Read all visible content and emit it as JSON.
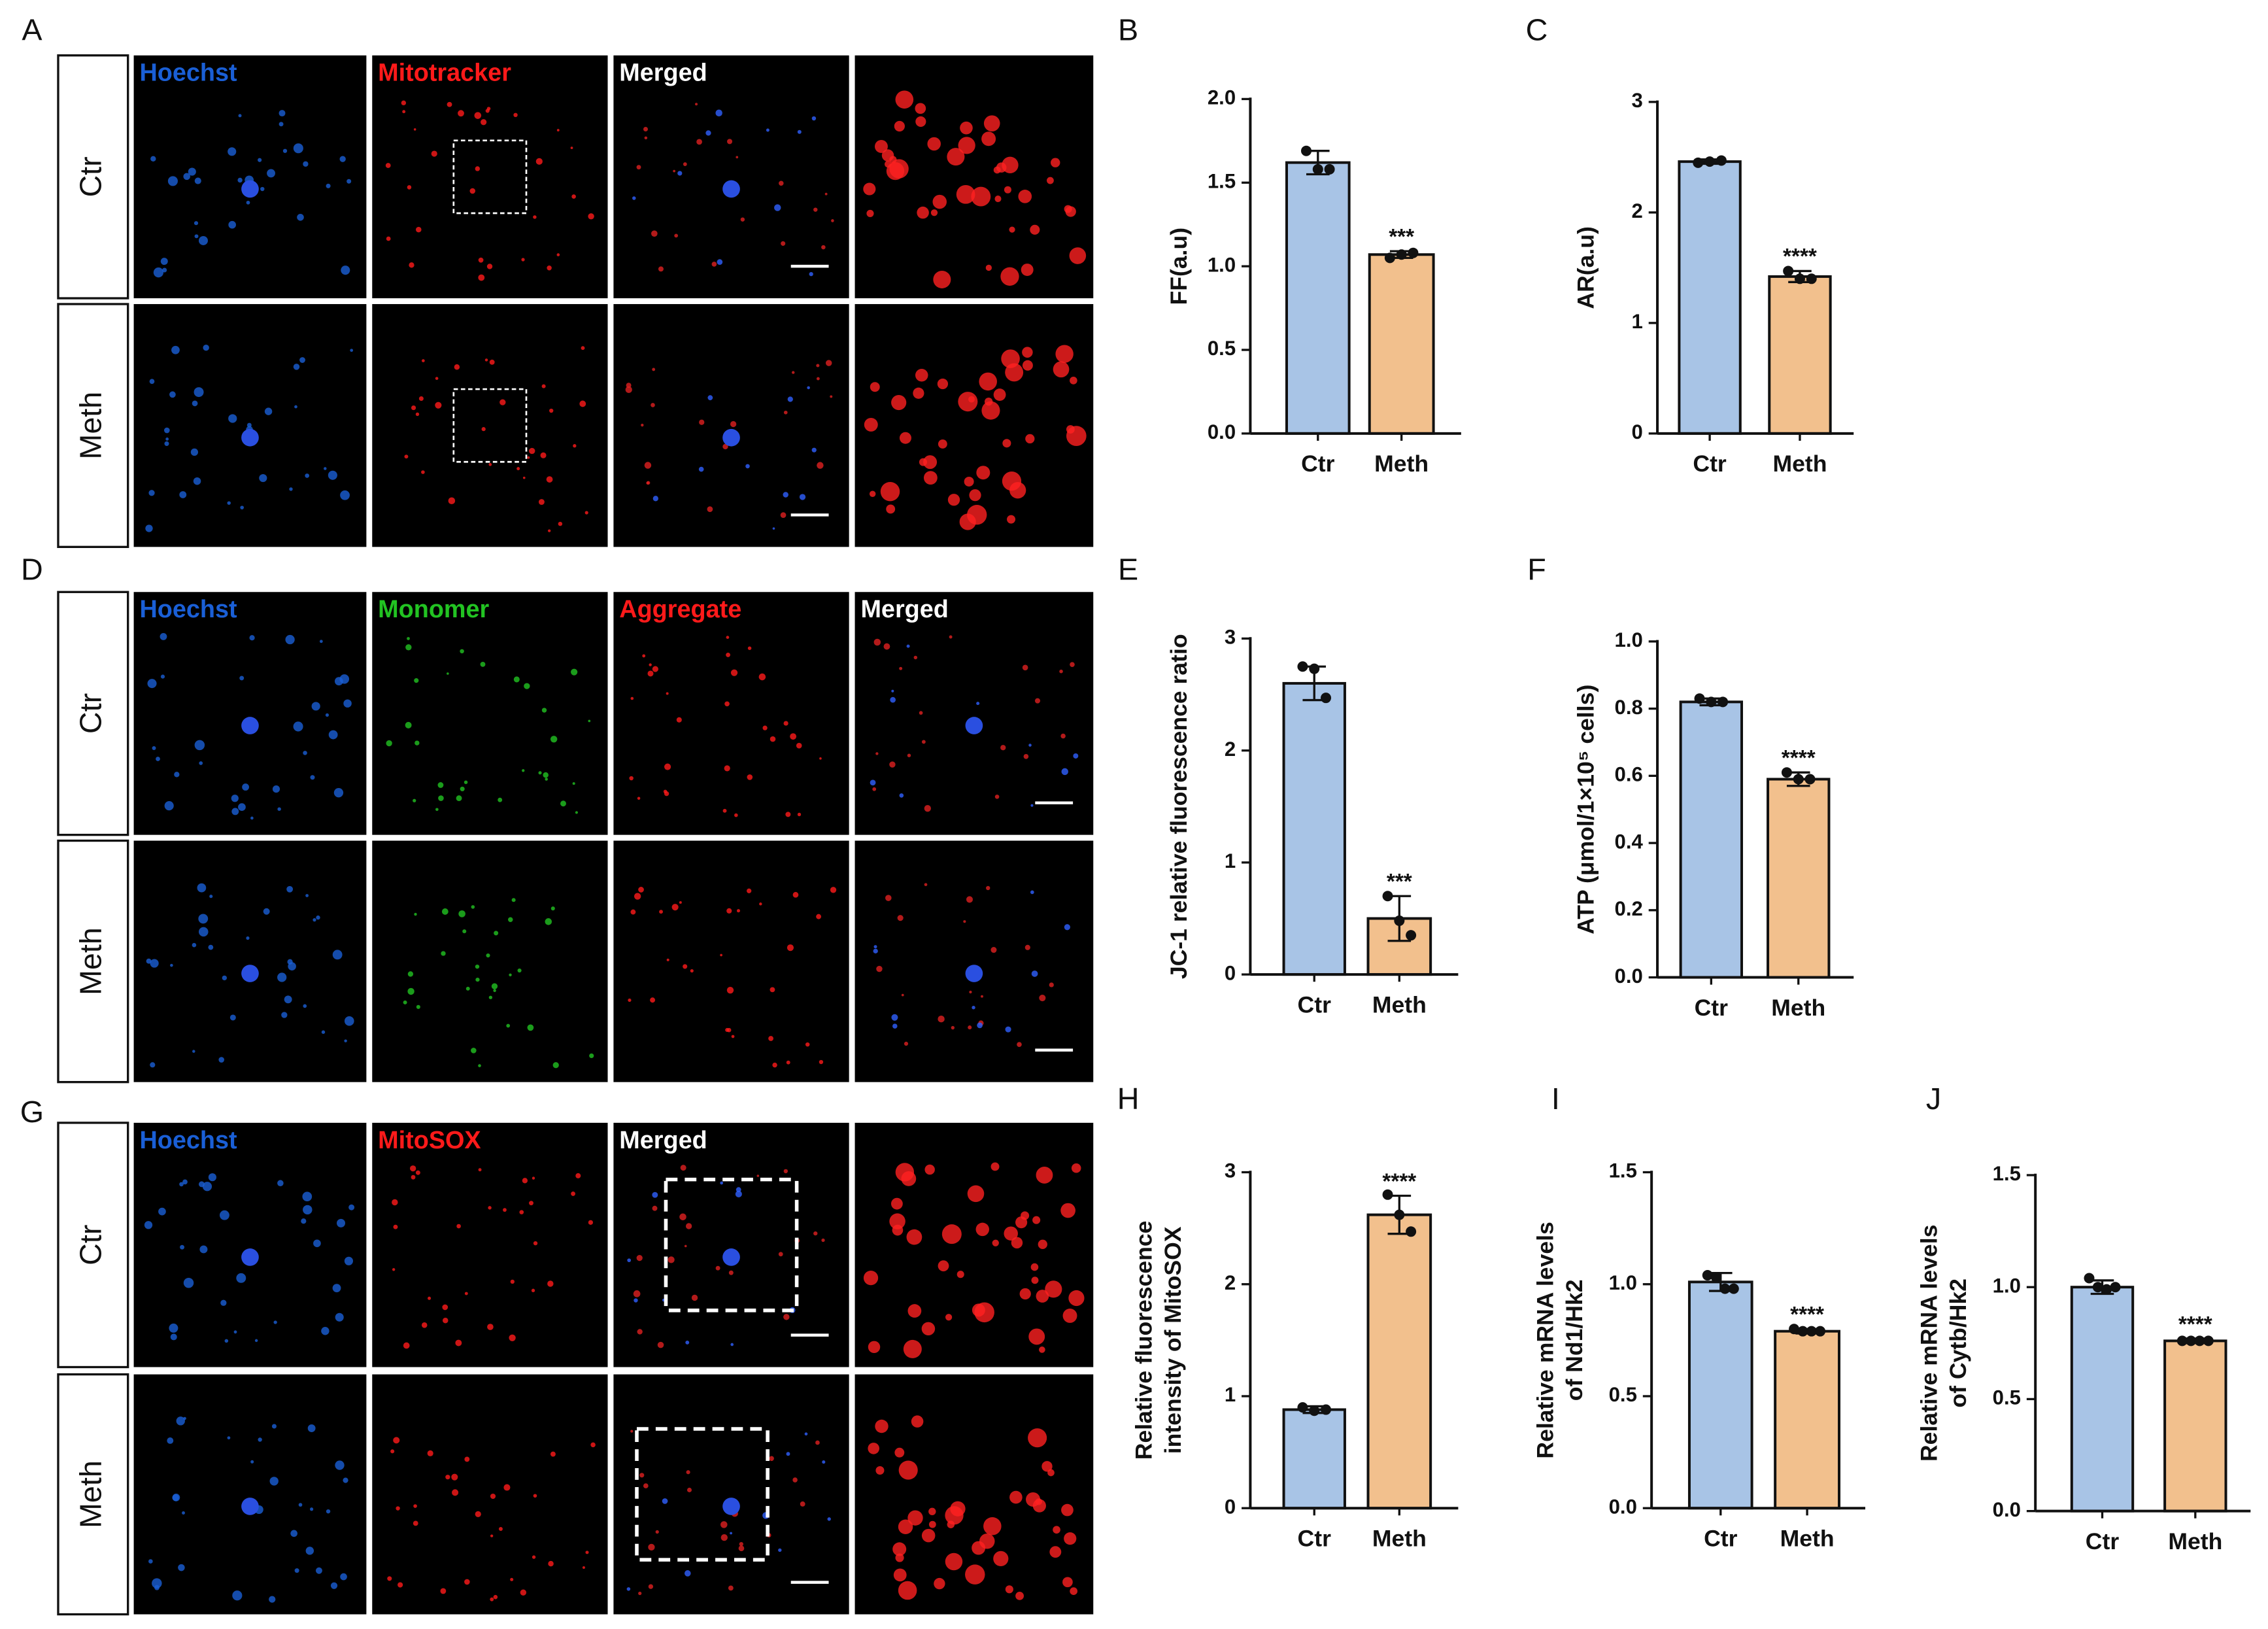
{
  "panels": [
    {
      "label": "A",
      "rows": [
        "Ctr",
        "Meth"
      ],
      "columns": [
        {
          "text": "Hoechst",
          "color": "#1a5fd6"
        },
        {
          "text": "Mitotracker",
          "color": "#ff1a1a"
        },
        {
          "text": "Merged",
          "color": "#ffffff"
        }
      ]
    },
    {
      "label": "D",
      "rows": [
        "Ctr",
        "Meth"
      ],
      "columns": [
        {
          "text": "Hoechst",
          "color": "#1a5fd6"
        },
        {
          "text": "Monomer",
          "color": "#22c322"
        },
        {
          "text": "Aggregate",
          "color": "#ff1a1a"
        },
        {
          "text": "Merged",
          "color": "#ffffff"
        }
      ]
    },
    {
      "label": "G",
      "rows": [
        "Ctr",
        "Meth"
      ],
      "columns": [
        {
          "text": "Hoechst",
          "color": "#1a5fd6"
        },
        {
          "text": "MitoSOX",
          "color": "#ff1a1a"
        },
        {
          "text": "Merged",
          "color": "#ffffff"
        }
      ]
    }
  ],
  "chart_data": [
    {
      "type": "bar",
      "title": "B",
      "ylabel": [
        "FF(a.u)"
      ],
      "categories": [
        "Ctr",
        "Meth"
      ],
      "colors": [
        "#a8c4e6",
        "#f2c08d"
      ],
      "values": [
        1.62,
        1.07
      ],
      "errors": [
        0.07,
        0.02
      ],
      "points": [
        [
          1.69,
          1.58,
          1.58
        ],
        [
          1.05,
          1.07,
          1.08
        ]
      ],
      "significance": [
        null,
        "***"
      ],
      "ylim": [
        0,
        2
      ],
      "yticks": [
        {
          "value": 0,
          "label": "0.0"
        },
        0.5,
        {
          "value": 1,
          "label": "1.0"
        },
        1.5,
        {
          "value": 2,
          "label": "2.0"
        }
      ]
    },
    {
      "type": "bar",
      "title": "C",
      "ylabel": [
        "AR(a.u)"
      ],
      "categories": [
        "Ctr",
        "Meth"
      ],
      "colors": [
        "#a8c4e6",
        "#f2c08d"
      ],
      "values": [
        2.46,
        1.42
      ],
      "errors": [
        0.02,
        0.05
      ],
      "points": [
        [
          2.45,
          2.46,
          2.47
        ],
        [
          1.47,
          1.4,
          1.4
        ]
      ],
      "significance": [
        null,
        "****"
      ],
      "ylim": [
        0,
        3
      ],
      "yticks": [
        0,
        1,
        2,
        3
      ]
    },
    {
      "type": "bar",
      "title": "E",
      "ylabel": [
        "JC-1 relative fluorescence ratio"
      ],
      "categories": [
        "Ctr",
        "Meth"
      ],
      "colors": [
        "#a8c4e6",
        "#f2c08d"
      ],
      "values": [
        2.6,
        0.5
      ],
      "errors": [
        0.15,
        0.2
      ],
      "points": [
        [
          2.75,
          2.73,
          2.47
        ],
        [
          0.7,
          0.48,
          0.35
        ]
      ],
      "significance": [
        null,
        "***"
      ],
      "ylim": [
        0,
        3
      ],
      "yticks": [
        0,
        1,
        2,
        3
      ]
    },
    {
      "type": "bar",
      "title": "F",
      "ylabel": [
        "ATP  (μmol/1×10⁵ cells)"
      ],
      "categories": [
        "Ctr",
        "Meth"
      ],
      "colors": [
        "#a8c4e6",
        "#f2c08d"
      ],
      "values": [
        0.82,
        0.59
      ],
      "errors": [
        0.01,
        0.02
      ],
      "points": [
        [
          0.83,
          0.82,
          0.82
        ],
        [
          0.61,
          0.59,
          0.59
        ]
      ],
      "significance": [
        null,
        "****"
      ],
      "ylim": [
        0,
        1
      ],
      "yticks": [
        {
          "value": 0,
          "label": "0.0"
        },
        0.2,
        0.4,
        0.6,
        0.8,
        {
          "value": 1,
          "label": "1.0"
        }
      ]
    },
    {
      "type": "bar",
      "title": "H",
      "ylabel": [
        "Relative fluorescence",
        "intensity of MitoSOX"
      ],
      "categories": [
        "Ctr",
        "Meth"
      ],
      "colors": [
        "#a8c4e6",
        "#f2c08d"
      ],
      "values": [
        0.88,
        2.62
      ],
      "errors": [
        0.03,
        0.17
      ],
      "points": [
        [
          0.9,
          0.87,
          0.88
        ],
        [
          2.8,
          2.62,
          2.47
        ]
      ],
      "significance": [
        null,
        "****"
      ],
      "ylim": [
        0,
        3
      ],
      "yticks": [
        0,
        1,
        2,
        3
      ]
    },
    {
      "type": "bar",
      "title": "I",
      "ylabel": [
        "Relative mRNA  levels",
        "of Nd1/Hk2"
      ],
      "categories": [
        "Ctr",
        "Meth"
      ],
      "colors": [
        "#a8c4e6",
        "#f2c08d"
      ],
      "values": [
        1.01,
        0.79
      ],
      "errors": [
        0.04,
        0.01
      ],
      "points": [
        [
          1.04,
          1.03,
          0.98,
          0.98
        ],
        [
          0.8,
          0.79,
          0.79,
          0.79
        ]
      ],
      "significance": [
        null,
        "****"
      ],
      "ylim": [
        0,
        1.5
      ],
      "yticks": [
        {
          "value": 0,
          "label": "0.0"
        },
        0.5,
        {
          "value": 1,
          "label": "1.0"
        },
        1.5
      ]
    },
    {
      "type": "bar",
      "title": "J",
      "ylabel": [
        "Relative mRNA  levels",
        "of Cytb/Hk2"
      ],
      "categories": [
        "Ctr",
        "Meth"
      ],
      "colors": [
        "#a8c4e6",
        "#f2c08d"
      ],
      "values": [
        1.0,
        0.76
      ],
      "errors": [
        0.03,
        0.01
      ],
      "points": [
        [
          1.04,
          1.0,
          0.99,
          1.0
        ],
        [
          0.76,
          0.76,
          0.76,
          0.76
        ]
      ],
      "significance": [
        null,
        "****"
      ],
      "ylim": [
        0,
        1.5
      ],
      "yticks": [
        {
          "value": 0,
          "label": "0.0"
        },
        0.5,
        {
          "value": 1,
          "label": "1.0"
        },
        1.5
      ]
    }
  ]
}
